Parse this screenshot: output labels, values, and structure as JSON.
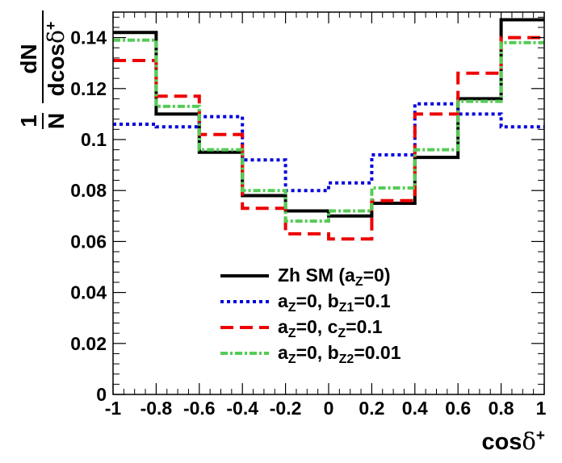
{
  "chart_data": {
    "type": "line",
    "step": true,
    "bin_edges": [
      -1,
      -0.8,
      -0.6,
      -0.4,
      -0.2,
      0,
      0.2,
      0.4,
      0.6,
      0.8,
      1
    ],
    "xlim": [
      -1,
      1
    ],
    "ylim": [
      0,
      0.15
    ],
    "x_ticks": [
      -1,
      -0.8,
      -0.6,
      -0.4,
      -0.2,
      0,
      0.2,
      0.4,
      0.6,
      0.8,
      1
    ],
    "x_tick_labels": [
      "-1",
      "-0.8",
      "-0.6",
      "-0.4",
      "-0.2",
      "0",
      "0.2",
      "0.4",
      "0.6",
      "0.8",
      "1"
    ],
    "y_ticks": [
      0,
      0.02,
      0.04,
      0.06,
      0.08,
      0.1,
      0.12,
      0.14
    ],
    "y_tick_labels": [
      "0",
      "0.02",
      "0.04",
      "0.06",
      "0.08",
      "0.1",
      "0.12",
      "0.14"
    ],
    "xlabel": {
      "main": "cos",
      "greek": "δ",
      "sup": "+"
    },
    "ylabel": {
      "num": "1",
      "den": "N",
      "frac_num": "dN",
      "frac_den_main": "dcos",
      "frac_den_greek": "δ",
      "frac_den_sup": "+"
    },
    "grid": false,
    "legend_position": "bottom-center",
    "series": [
      {
        "name": "Zh SM (a_Z=0)",
        "label_parts": [
          {
            "t": "Zh SM (a"
          },
          {
            "t": "Z",
            "sub": true
          },
          {
            "t": "=0)"
          }
        ],
        "color": "#000000",
        "dash": "",
        "values": [
          0.142,
          0.11,
          0.095,
          0.078,
          0.072,
          0.07,
          0.075,
          0.093,
          0.116,
          0.147
        ]
      },
      {
        "name": "a_Z=0, b_Z1=0.1",
        "label_parts": [
          {
            "t": "a"
          },
          {
            "t": "Z",
            "sub": true
          },
          {
            "t": "=0, b"
          },
          {
            "t": "Z1",
            "sub": true
          },
          {
            "t": "=0.1"
          }
        ],
        "color": "#0000dd",
        "dash": "4,4",
        "values": [
          0.106,
          0.105,
          0.109,
          0.092,
          0.08,
          0.083,
          0.094,
          0.114,
          0.11,
          0.105
        ]
      },
      {
        "name": "a_Z=0, c_Z=0.1",
        "label_parts": [
          {
            "t": "a"
          },
          {
            "t": "Z",
            "sub": true
          },
          {
            "t": "=0, c"
          },
          {
            "t": "Z",
            "sub": true
          },
          {
            "t": "=0.1"
          }
        ],
        "color": "#ee0000",
        "dash": "16,8",
        "values": [
          0.131,
          0.117,
          0.102,
          0.073,
          0.063,
          0.061,
          0.076,
          0.11,
          0.126,
          0.14
        ]
      },
      {
        "name": "a_Z=0, b_Z2=0.01",
        "label_parts": [
          {
            "t": "a"
          },
          {
            "t": "Z",
            "sub": true
          },
          {
            "t": "=0, b"
          },
          {
            "t": "Z2",
            "sub": true
          },
          {
            "t": "=0.01"
          }
        ],
        "color": "#55cc55",
        "dash": "9,3,3,3",
        "values": [
          0.139,
          0.113,
          0.096,
          0.08,
          0.068,
          0.072,
          0.081,
          0.096,
          0.115,
          0.138
        ]
      }
    ]
  }
}
